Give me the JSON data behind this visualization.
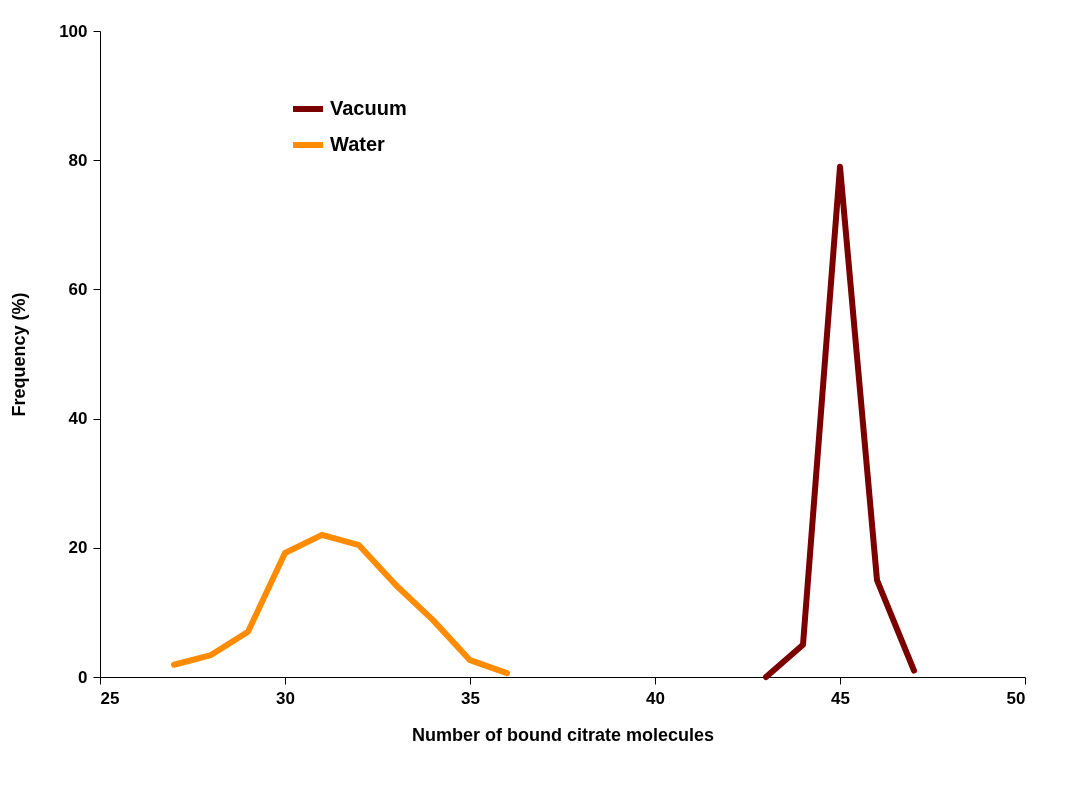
{
  "chart_data": {
    "type": "line",
    "xlabel": "Number of bound citrate molecules",
    "ylabel": "Frequency (%)",
    "xlim": [
      25,
      50
    ],
    "xticks": [
      25,
      30,
      35,
      40,
      45,
      50
    ],
    "ylim": [
      0,
      100
    ],
    "yticks": [
      0,
      20,
      40,
      60,
      80,
      100
    ],
    "grid": false,
    "legend": "top left",
    "line_style": "solid",
    "marker": "none",
    "series": [
      {
        "name": "Vacuum",
        "color": "#7b0000",
        "x": [
          43,
          44,
          45,
          46,
          47
        ],
        "values": [
          0,
          5,
          79,
          15,
          1
        ]
      },
      {
        "name": "Water",
        "color": "#ff8c00",
        "x": [
          27,
          28,
          29,
          30,
          31,
          32,
          33,
          34,
          35,
          36
        ],
        "values": [
          1.9,
          3.4,
          7,
          19.2,
          22,
          20.4,
          14.2,
          8.8,
          2.6,
          0.6
        ]
      }
    ]
  }
}
